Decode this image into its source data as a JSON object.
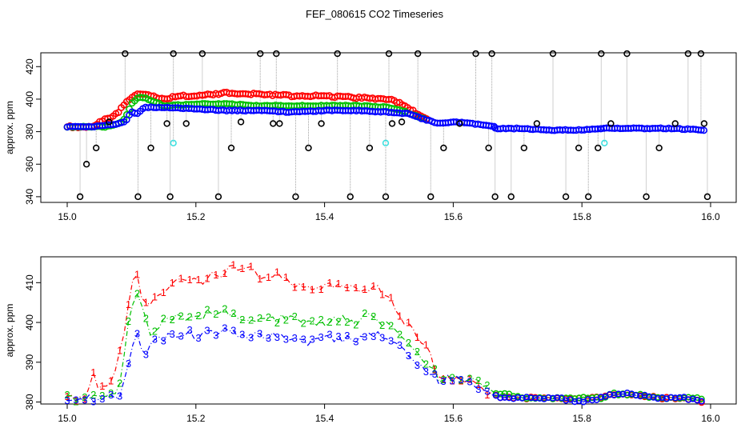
{
  "title": "FEF_080615  CO2 Timeseries",
  "colors": {
    "series1": "#ff0000",
    "series2": "#00c000",
    "series3": "#0000ff",
    "black": "#000000",
    "cyan": "#40e0e0",
    "drop": "#a0a0a0",
    "frame": "#000000"
  },
  "chart_data": [
    {
      "type": "scatter",
      "ylabel": "approx. ppm",
      "xlim": [
        15.0,
        16.0
      ],
      "ylim": [
        336.5,
        428.5
      ],
      "xticks": [
        15.0,
        15.2,
        15.4,
        15.6,
        15.8,
        16.0
      ],
      "xtick_labels": [
        "15.0",
        "15.2",
        "15.4",
        "15.6",
        "15.8",
        "16.0"
      ],
      "yticks": [
        340,
        360,
        380,
        400,
        420
      ],
      "ytick_labels": [
        "340",
        "360",
        "380",
        "400",
        "420"
      ],
      "series": [
        {
          "name": "1",
          "color": "#ff0000",
          "segments": [
            {
              "x": [
                15.0,
                15.04,
                15.05,
                15.07,
                15.08,
                15.09,
                15.1,
                15.11,
                15.12,
                15.15,
                15.17,
                15.2,
                15.25,
                15.3,
                15.35,
                15.4,
                15.45,
                15.5,
                15.52,
                15.54,
                15.56
              ],
              "y": [
                383,
                383,
                386,
                389,
                392,
                398,
                401,
                403,
                403,
                400,
                402,
                402,
                404,
                403,
                402,
                402,
                401,
                400,
                397,
                392,
                387
              ]
            }
          ]
        },
        {
          "name": "2",
          "color": "#00c000",
          "segments": [
            {
              "x": [
                15.0,
                15.06,
                15.08,
                15.09,
                15.1,
                15.11,
                15.12,
                15.15,
                15.2,
                15.25,
                15.3,
                15.35,
                15.4,
                15.45,
                15.5,
                15.52,
                15.54,
                15.56
              ],
              "y": [
                383,
                383,
                385,
                388,
                397,
                401,
                401,
                396,
                397,
                397,
                396,
                396,
                396,
                396,
                395,
                393,
                390,
                387
              ]
            }
          ]
        },
        {
          "name": "3",
          "color": "#0000ff",
          "segments": [
            {
              "x": [
                15.0,
                15.04,
                15.06,
                15.08,
                15.09,
                15.1,
                15.11,
                15.12,
                15.15,
                15.2,
                15.25,
                15.3,
                15.35,
                15.4,
                15.45,
                15.5,
                15.53,
                15.56,
                15.58,
                15.6,
                15.63,
                15.665
              ],
              "y": [
                383,
                383,
                384,
                385,
                386,
                392,
                391,
                395,
                395,
                394,
                393,
                393,
                392,
                393,
                393,
                392,
                391,
                387,
                385,
                386,
                385,
                383
              ]
            },
            {
              "x": [
                15.665,
                15.7,
                15.75,
                15.8,
                15.83
              ],
              "y": [
                382,
                382,
                381,
                381,
                382
              ]
            },
            {
              "x": [
                15.83,
                15.88,
                15.94,
                15.99
              ],
              "y": [
                382,
                382,
                382,
                381
              ]
            }
          ]
        },
        {
          "name": "spikes",
          "color": "#000000",
          "x": [
            15.02,
            15.03,
            15.045,
            15.065,
            15.09,
            15.11,
            15.13,
            15.155,
            15.16,
            15.165,
            15.185,
            15.21,
            15.235,
            15.255,
            15.27,
            15.3,
            15.32,
            15.325,
            15.33,
            15.355,
            15.375,
            15.395,
            15.42,
            15.44,
            15.47,
            15.495,
            15.5,
            15.505,
            15.52,
            15.545,
            15.565,
            15.585,
            15.61,
            15.635,
            15.655,
            15.66,
            15.665,
            15.69,
            15.71,
            15.73,
            15.755,
            15.775,
            15.795,
            15.81,
            15.825,
            15.83,
            15.845,
            15.87,
            15.9,
            15.92,
            15.945,
            15.965,
            15.985,
            15.99,
            15.995
          ],
          "y": [
            340,
            360,
            370,
            386,
            428,
            340,
            370,
            385,
            340,
            428,
            385,
            428,
            340,
            370,
            386,
            428,
            385,
            428,
            385,
            340,
            370,
            385,
            428,
            340,
            370,
            340,
            428,
            385,
            386,
            428,
            340,
            370,
            385,
            428,
            370,
            428,
            340,
            340,
            370,
            385,
            428,
            340,
            370,
            340,
            370,
            428,
            385,
            428,
            340,
            370,
            385,
            428,
            428,
            385,
            340
          ]
        },
        {
          "name": "cyan",
          "color": "#40e0e0",
          "x": [
            15.165,
            15.495,
            15.835
          ],
          "y": [
            373,
            373,
            373
          ]
        }
      ]
    },
    {
      "type": "line",
      "ylabel": "approx. ppm",
      "xlim": [
        15.0,
        16.0
      ],
      "ylim": [
        379.5,
        416.5
      ],
      "xticks": [
        15.0,
        15.2,
        15.4,
        15.6,
        15.8,
        16.0
      ],
      "xtick_labels": [
        "15.0",
        "15.2",
        "15.4",
        "15.6",
        "15.8",
        "16.0"
      ],
      "yticks": [
        380,
        390,
        400,
        410
      ],
      "ytick_labels": [
        "380",
        "390",
        "400",
        "410"
      ],
      "series": [
        {
          "name": "1",
          "color": "#ff0000",
          "marker": "1",
          "x": [
            15.0,
            15.02,
            15.03,
            15.04,
            15.05,
            15.06,
            15.07,
            15.08,
            15.09,
            15.1,
            15.11,
            15.12,
            15.13,
            15.15,
            15.17,
            15.2,
            15.23,
            15.25,
            15.28,
            15.3,
            15.32,
            15.35,
            15.38,
            15.4,
            15.42,
            15.45,
            15.47,
            15.5,
            15.52,
            15.54,
            15.56,
            15.58,
            15.6,
            15.62,
            15.64,
            15.66,
            15.68,
            15.72,
            15.76,
            15.8,
            15.83,
            15.85,
            15.88,
            15.92,
            15.96,
            15.99
          ],
          "y": [
            381,
            381,
            382,
            388,
            383,
            384,
            385,
            391,
            398,
            410,
            411,
            404,
            405,
            408,
            411,
            410,
            412,
            413,
            414,
            411,
            412,
            410,
            409,
            409,
            410,
            408,
            409,
            407,
            401,
            398,
            394,
            385,
            386,
            386,
            384,
            382,
            381,
            381,
            381,
            381,
            381,
            382,
            382,
            381,
            381,
            380
          ]
        },
        {
          "name": "2",
          "color": "#00c000",
          "marker": "2",
          "x": [
            15.0,
            15.02,
            15.04,
            15.06,
            15.08,
            15.09,
            15.1,
            15.11,
            15.12,
            15.13,
            15.15,
            15.17,
            15.2,
            15.23,
            15.25,
            15.28,
            15.3,
            15.33,
            15.35,
            15.38,
            15.4,
            15.42,
            15.45,
            15.47,
            15.5,
            15.52,
            15.54,
            15.56,
            15.58,
            15.6,
            15.62,
            15.64,
            15.66,
            15.68,
            15.72,
            15.76,
            15.8,
            15.83,
            15.85,
            15.88,
            15.92,
            15.96,
            15.99
          ],
          "y": [
            381,
            381,
            381,
            381,
            384,
            394,
            404,
            408,
            403,
            397,
            400,
            402,
            401,
            403,
            402,
            401,
            400,
            401,
            401,
            400,
            400,
            401,
            400,
            402,
            399,
            396,
            393,
            390,
            385,
            386,
            386,
            385,
            382,
            382,
            381,
            381,
            381,
            381,
            382,
            382,
            381,
            381,
            381
          ]
        },
        {
          "name": "3",
          "color": "#0000ff",
          "marker": "3",
          "x": [
            15.0,
            15.02,
            15.04,
            15.06,
            15.08,
            15.09,
            15.1,
            15.11,
            15.12,
            15.13,
            15.15,
            15.17,
            15.2,
            15.23,
            15.25,
            15.28,
            15.3,
            15.33,
            15.35,
            15.38,
            15.4,
            15.42,
            15.45,
            15.47,
            15.5,
            15.52,
            15.54,
            15.56,
            15.58,
            15.6,
            15.62,
            15.64,
            15.66,
            15.68,
            15.72,
            15.76,
            15.8,
            15.83,
            15.85,
            15.88,
            15.92,
            15.96,
            15.99
          ],
          "y": [
            380,
            380,
            381,
            381,
            382,
            385,
            395,
            397,
            390,
            395,
            396,
            397,
            397,
            397,
            398,
            397,
            397,
            396,
            396,
            395,
            396,
            396,
            395,
            397,
            396,
            393,
            390,
            388,
            385,
            386,
            385,
            384,
            382,
            381,
            381,
            381,
            380,
            381,
            382,
            382,
            381,
            381,
            380
          ]
        }
      ]
    }
  ]
}
